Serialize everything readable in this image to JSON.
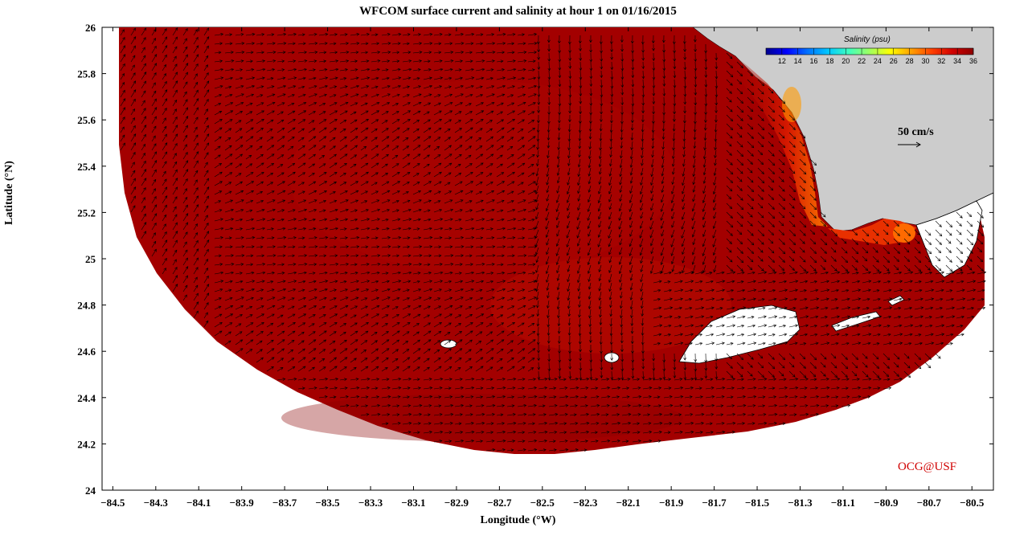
{
  "title": "WFCOM surface current and salinity at hour 1 on 01/16/2015",
  "xlabel": "Longitude (°W)",
  "ylabel": "Latitude (°N)",
  "credit": "OCG@USF",
  "vector_scale_label": "50 cm/s",
  "colorbar": {
    "title": "Salinity (psu)",
    "ticks": [
      "12",
      "14",
      "16",
      "18",
      "20",
      "22",
      "24",
      "26",
      "28",
      "30",
      "32",
      "34",
      "36"
    ],
    "range": [
      10,
      36
    ],
    "colors": [
      "#00008f",
      "#0000ff",
      "#0070ff",
      "#00c8ff",
      "#40ffbf",
      "#a0ff60",
      "#ffff00",
      "#ffa000",
      "#ff4000",
      "#d00000",
      "#8f0000"
    ]
  },
  "axes": {
    "x_ticks": [
      "-84.5",
      "-84.3",
      "-84.1",
      "-83.9",
      "-83.7",
      "-83.5",
      "-83.3",
      "-83.1",
      "-82.9",
      "-82.7",
      "-82.5",
      "-82.3",
      "-82.1",
      "-81.9",
      "-81.7",
      "-81.5",
      "-81.3",
      "-81.1",
      "-80.9",
      "-80.7",
      "-80.5"
    ],
    "y_ticks": [
      "26",
      "25.8",
      "25.6",
      "25.4",
      "25.2",
      "25",
      "24.8",
      "24.6",
      "24.4",
      "24.2",
      "24"
    ],
    "xlim": [
      -84.55,
      -80.4
    ],
    "ylim": [
      24,
      26
    ]
  },
  "colors": {
    "ocean_salinity": "#a00000",
    "nearshore_low_salinity": "#ff5a00",
    "land": "#cccccc",
    "credit_text": "#d00000"
  }
}
